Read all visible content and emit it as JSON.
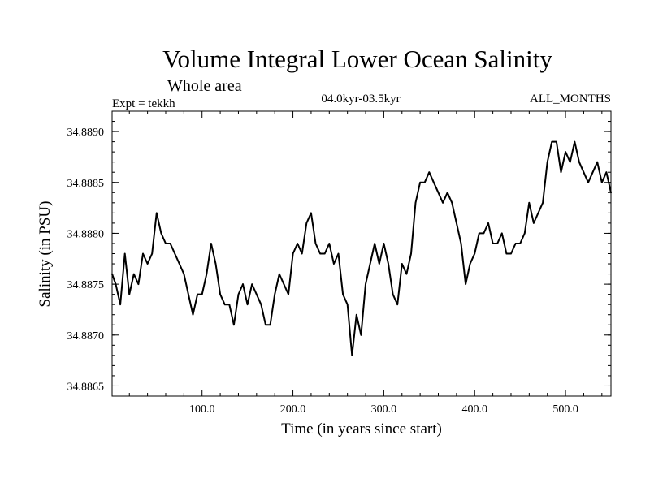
{
  "chart_data": {
    "type": "line",
    "title": "Volume Integral Lower Ocean Salinity",
    "subtitle": "Whole area",
    "experiment_label": "Expt = tekkh",
    "period_label": "04.0kyr-03.5kyr",
    "months_label": "ALL_MONTHS",
    "xlabel": "Time (in years since start)",
    "ylabel": "Salinity (in PSU)",
    "xlim": [
      1,
      550
    ],
    "ylim": [
      34.8864,
      34.8892
    ],
    "grid": false,
    "x_ticks": [
      100,
      200,
      300,
      400,
      500
    ],
    "x_tick_labels": [
      "100.0",
      "200.0",
      "300.0",
      "400.0",
      "500.0"
    ],
    "y_ticks": [
      34.8865,
      34.887,
      34.8875,
      34.888,
      34.8885,
      34.889
    ],
    "y_tick_labels": [
      "34.8865",
      "34.8870",
      "34.8875",
      "34.8880",
      "34.8885",
      "34.8890"
    ],
    "series": [
      {
        "name": "Volume Integral Lower Ocean Salinity",
        "color": "#000000",
        "x": [
          1,
          5,
          10,
          15,
          20,
          25,
          30,
          35,
          40,
          45,
          50,
          55,
          60,
          65,
          70,
          75,
          80,
          85,
          90,
          95,
          100,
          105,
          110,
          115,
          120,
          125,
          130,
          135,
          140,
          145,
          150,
          155,
          160,
          165,
          170,
          175,
          180,
          185,
          190,
          195,
          200,
          205,
          210,
          215,
          220,
          225,
          230,
          235,
          240,
          245,
          250,
          255,
          260,
          265,
          270,
          275,
          280,
          285,
          290,
          295,
          300,
          305,
          310,
          315,
          320,
          325,
          330,
          335,
          340,
          345,
          350,
          355,
          360,
          365,
          370,
          375,
          380,
          385,
          390,
          395,
          400,
          405,
          410,
          415,
          420,
          425,
          430,
          435,
          440,
          445,
          450,
          455,
          460,
          465,
          470,
          475,
          480,
          485,
          490,
          495,
          500,
          505,
          510,
          515,
          520,
          525,
          530,
          535,
          540,
          545,
          550
        ],
        "values": [
          34.8876,
          34.8875,
          34.8873,
          34.8878,
          34.8874,
          34.8876,
          34.8875,
          34.8878,
          34.8877,
          34.8878,
          34.8882,
          34.888,
          34.8879,
          34.8879,
          34.8878,
          34.8877,
          34.8876,
          34.8874,
          34.8872,
          34.8874,
          34.8874,
          34.8876,
          34.8879,
          34.8877,
          34.8874,
          34.8873,
          34.8873,
          34.8871,
          34.8874,
          34.8875,
          34.8873,
          34.8875,
          34.8874,
          34.8873,
          34.8871,
          34.8871,
          34.8874,
          34.8876,
          34.8875,
          34.8874,
          34.8878,
          34.8879,
          34.8878,
          34.8881,
          34.8882,
          34.8879,
          34.8878,
          34.8878,
          34.8879,
          34.8877,
          34.8878,
          34.8874,
          34.8873,
          34.8868,
          34.8872,
          34.887,
          34.8875,
          34.8877,
          34.8879,
          34.8877,
          34.8879,
          34.8877,
          34.8874,
          34.8873,
          34.8877,
          34.8876,
          34.8878,
          34.8883,
          34.8885,
          34.8885,
          34.8886,
          34.8885,
          34.8884,
          34.8883,
          34.8884,
          34.8883,
          34.8881,
          34.8879,
          34.8875,
          34.8877,
          34.8878,
          34.888,
          34.888,
          34.8881,
          34.8879,
          34.8879,
          34.888,
          34.8878,
          34.8878,
          34.8879,
          34.8879,
          34.888,
          34.8883,
          34.8881,
          34.8882,
          34.8883,
          34.8887,
          34.8889,
          34.8889,
          34.8886,
          34.8888,
          34.8887,
          34.8889,
          34.8887,
          34.8886,
          34.8885,
          34.8886,
          34.8887,
          34.8885,
          34.8886,
          34.8884
        ]
      }
    ]
  }
}
